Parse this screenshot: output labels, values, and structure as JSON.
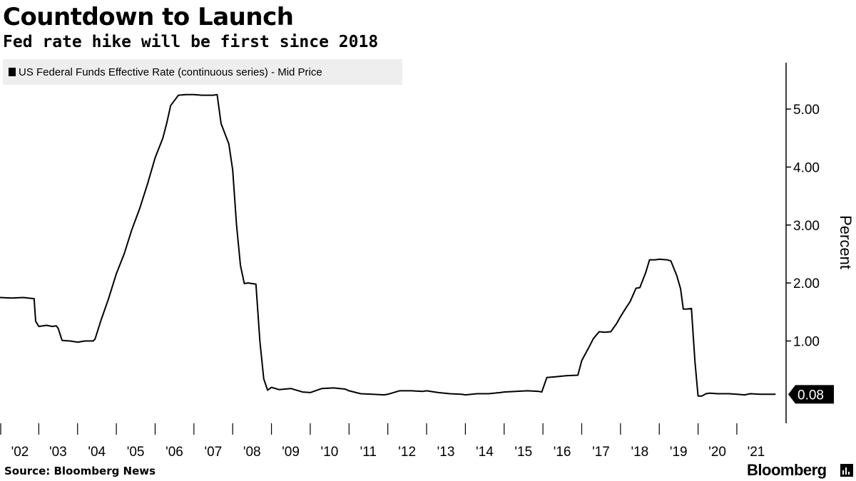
{
  "header": {
    "title": "Countdown to Launch",
    "subtitle": "Fed rate hike will be first since 2018"
  },
  "footer": {
    "source": "Source: Bloomberg News",
    "brand": "Bloomberg"
  },
  "colors": {
    "line": "#000000",
    "legend_bg": "#eeeeee",
    "last_value_bg": "#000000",
    "last_value_text": "#ffffff"
  },
  "chart_data": {
    "type": "line",
    "title": "Countdown to Launch",
    "subtitle": "Fed rate hike will be first since 2018",
    "ylabel": "Percent",
    "xlabel": "",
    "legend": "top-left",
    "grid": false,
    "yaxis_side": "right",
    "ylim": [
      -0.42,
      5.8
    ],
    "yticks": [
      1.0,
      2.0,
      3.0,
      4.0,
      5.0
    ],
    "ytick_labels": [
      "1.00",
      "2.00",
      "3.00",
      "4.00",
      "5.00"
    ],
    "xlim": [
      2002.0,
      2022.27
    ],
    "xticks": [
      2002,
      2003,
      2004,
      2005,
      2006,
      2007,
      2008,
      2009,
      2010,
      2011,
      2012,
      2013,
      2014,
      2015,
      2016,
      2017,
      2018,
      2019,
      2020,
      2021
    ],
    "xtick_labels": [
      "'02",
      "'03",
      "'04",
      "'05",
      "'06",
      "'07",
      "'08",
      "'09",
      "'10",
      "'11",
      "'12",
      "'13",
      "'14",
      "'15",
      "'16",
      "'17",
      "'18",
      "'19",
      "'20",
      "'21"
    ],
    "last_value_label": "0.08",
    "series": [
      {
        "name": "US Federal Funds Effective Rate (continuous series) - Mid Price",
        "x": [
          2002.0,
          2002.3,
          2002.6,
          2002.88,
          2002.92,
          2003.0,
          2003.2,
          2003.35,
          2003.45,
          2003.5,
          2003.6,
          2003.8,
          2004.0,
          2004.2,
          2004.4,
          2004.45,
          2004.6,
          2004.8,
          2005.0,
          2005.2,
          2005.4,
          2005.6,
          2005.8,
          2006.0,
          2006.2,
          2006.3,
          2006.4,
          2006.6,
          2006.8,
          2007.0,
          2007.2,
          2007.5,
          2007.6,
          2007.7,
          2007.9,
          2008.0,
          2008.1,
          2008.2,
          2008.3,
          2008.4,
          2008.6,
          2008.7,
          2008.8,
          2008.9,
          2009.0,
          2009.2,
          2009.5,
          2009.8,
          2010.0,
          2010.3,
          2010.6,
          2010.9,
          2011.0,
          2011.3,
          2011.6,
          2011.9,
          2012.0,
          2012.3,
          2012.6,
          2012.9,
          2013.0,
          2013.3,
          2013.6,
          2013.9,
          2014.0,
          2014.3,
          2014.6,
          2014.9,
          2015.0,
          2015.3,
          2015.6,
          2015.9,
          2015.97,
          2016.1,
          2016.3,
          2016.6,
          2016.9,
          2017.0,
          2017.2,
          2017.3,
          2017.45,
          2017.6,
          2017.75,
          2017.9,
          2018.0,
          2018.15,
          2018.25,
          2018.4,
          2018.5,
          2018.65,
          2018.75,
          2018.9,
          2019.0,
          2019.2,
          2019.3,
          2019.45,
          2019.55,
          2019.62,
          2019.7,
          2019.83,
          2019.92,
          2020.0,
          2020.1,
          2020.2,
          2020.3,
          2020.5,
          2020.8,
          2021.0,
          2021.2,
          2021.35,
          2021.6,
          2021.9,
          2022.0
        ],
        "y": [
          1.75,
          1.74,
          1.75,
          1.73,
          1.34,
          1.25,
          1.27,
          1.25,
          1.26,
          1.22,
          1.01,
          1.0,
          0.98,
          1.0,
          1.0,
          1.03,
          1.35,
          1.73,
          2.16,
          2.5,
          2.92,
          3.28,
          3.7,
          4.16,
          4.5,
          4.76,
          5.06,
          5.24,
          5.25,
          5.25,
          5.24,
          5.24,
          5.25,
          4.75,
          4.4,
          3.95,
          3.0,
          2.3,
          1.99,
          2.0,
          1.98,
          1.0,
          0.35,
          0.15,
          0.2,
          0.16,
          0.18,
          0.12,
          0.11,
          0.18,
          0.19,
          0.17,
          0.14,
          0.09,
          0.08,
          0.07,
          0.08,
          0.14,
          0.14,
          0.13,
          0.14,
          0.11,
          0.09,
          0.08,
          0.07,
          0.09,
          0.09,
          0.11,
          0.12,
          0.13,
          0.14,
          0.13,
          0.12,
          0.37,
          0.38,
          0.4,
          0.41,
          0.66,
          0.91,
          1.04,
          1.16,
          1.15,
          1.16,
          1.3,
          1.42,
          1.58,
          1.68,
          1.91,
          1.92,
          2.18,
          2.4,
          2.4,
          2.41,
          2.4,
          2.38,
          2.13,
          1.9,
          1.55,
          1.55,
          1.56,
          0.65,
          0.05,
          0.05,
          0.09,
          0.1,
          0.09,
          0.09,
          0.08,
          0.07,
          0.09,
          0.08,
          0.08,
          0.08
        ]
      }
    ]
  }
}
